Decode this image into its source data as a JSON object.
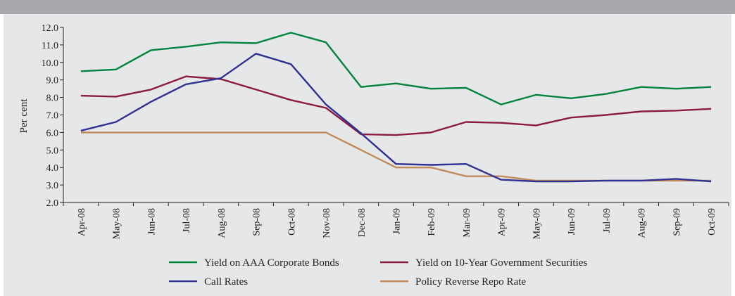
{
  "chart_data": {
    "type": "line",
    "ylabel": "Per cent",
    "xlabel": "",
    "ylim": [
      2.0,
      12.0
    ],
    "y_ticks": [
      "2.0",
      "3.0",
      "4.0",
      "5.0",
      "6.0",
      "7.0",
      "8.0",
      "9.0",
      "10.0",
      "11.0",
      "12.0"
    ],
    "grid": false,
    "legend_position": "bottom",
    "categories": [
      "Apr-08",
      "May-08",
      "Jun-08",
      "Jul-08",
      "Aug-08",
      "Sep-08",
      "Oct-08",
      "Nov-08",
      "Dec-08",
      "Jan-09",
      "Feb-09",
      "Mar-09",
      "Apr-09",
      "May-09",
      "Jun-09",
      "Jul-09",
      "Aug-09",
      "Sep-09",
      "Oct-09"
    ],
    "series": [
      {
        "name": "Yield on AAA Corporate Bonds",
        "color": "#00843d",
        "values": [
          9.5,
          9.6,
          10.7,
          10.9,
          11.15,
          11.1,
          11.7,
          11.15,
          8.6,
          8.8,
          8.5,
          8.55,
          7.6,
          8.15,
          7.95,
          8.2,
          8.6,
          8.5,
          8.6
        ]
      },
      {
        "name": "Yield on 10-Year Government Securities",
        "color": "#8b1a3f",
        "values": [
          8.1,
          8.05,
          8.45,
          9.2,
          9.05,
          8.45,
          7.85,
          7.4,
          5.9,
          5.85,
          6.0,
          6.6,
          6.55,
          6.4,
          6.85,
          7.0,
          7.2,
          7.25,
          7.35
        ]
      },
      {
        "name": "Call Rates",
        "color": "#2e3092",
        "values": [
          6.1,
          6.6,
          7.75,
          8.75,
          9.1,
          10.5,
          9.9,
          7.6,
          5.95,
          4.2,
          4.15,
          4.2,
          3.3,
          3.2,
          3.2,
          3.25,
          3.25,
          3.35,
          3.2
        ]
      },
      {
        "name": "Policy Reverse Repo Rate",
        "color": "#c08a5b",
        "values": [
          6.0,
          6.0,
          6.0,
          6.0,
          6.0,
          6.0,
          6.0,
          6.0,
          5.0,
          4.0,
          4.0,
          3.5,
          3.5,
          3.25,
          3.25,
          3.25,
          3.25,
          3.25,
          3.25
        ]
      }
    ]
  }
}
